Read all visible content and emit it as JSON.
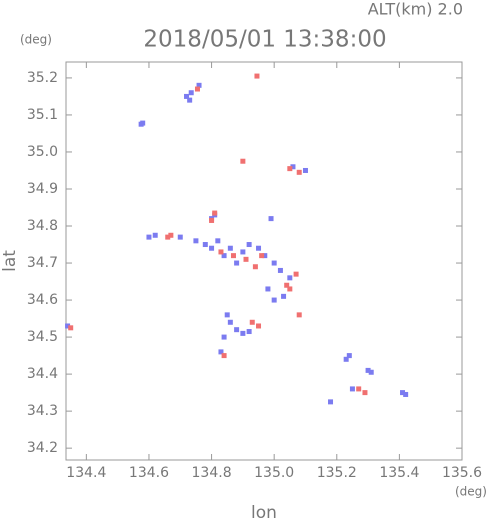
{
  "chart_data": {
    "type": "scatter",
    "title": "2018/05/01 13:38:00",
    "subtitle": "ALT(km) 2.0",
    "y_unit": "(deg)",
    "x_unit": "(deg)",
    "xlabel": "lon",
    "ylabel": "lat",
    "xlim": [
      134.335,
      135.6
    ],
    "ylim": [
      34.168,
      35.243
    ],
    "xticks": [
      134.4,
      134.6,
      134.8,
      {
        "value": 135,
        "label": "135.0"
      },
      135.2,
      135.4,
      135.6
    ],
    "yticks": [
      34.2,
      34.3,
      34.4,
      34.5,
      34.6,
      34.7,
      34.8,
      34.9,
      {
        "value": 35,
        "label": "35.0"
      },
      35.1,
      35.2
    ],
    "series": [
      {
        "color": "#7b7bf0",
        "x": [
          134.575,
          134.58,
          134.72,
          134.73,
          134.735,
          134.76,
          134.8,
          134.81,
          134.6,
          134.62,
          134.7,
          134.75,
          134.78,
          134.8,
          134.82,
          134.84,
          134.86,
          134.88,
          134.9,
          134.92,
          134.95,
          134.97,
          135.0,
          135.02,
          135.05,
          134.98,
          135.0,
          135.03,
          134.99,
          135.1,
          135.06,
          134.88,
          134.9,
          134.92,
          134.86,
          134.84,
          134.83,
          134.85,
          135.23,
          135.24,
          135.3,
          135.31,
          135.25,
          135.18,
          135.41,
          135.42,
          134.34
        ],
        "y": [
          35.075,
          35.078,
          35.15,
          35.14,
          35.16,
          35.18,
          34.82,
          34.83,
          34.77,
          34.775,
          34.77,
          34.76,
          34.75,
          34.74,
          34.76,
          34.72,
          34.74,
          34.7,
          34.73,
          34.75,
          34.74,
          34.72,
          34.7,
          34.68,
          34.66,
          34.63,
          34.6,
          34.61,
          34.82,
          34.95,
          34.96,
          34.52,
          34.51,
          34.515,
          34.54,
          34.5,
          34.46,
          34.56,
          34.44,
          34.45,
          34.41,
          34.405,
          34.36,
          34.325,
          34.35,
          34.345,
          34.53
        ]
      },
      {
        "color": "#f07070",
        "x": [
          134.945,
          134.755,
          134.9,
          135.05,
          135.08,
          134.81,
          134.8,
          134.67,
          134.66,
          134.83,
          134.87,
          134.91,
          134.94,
          134.96,
          135.04,
          135.05,
          135.07,
          135.08,
          134.95,
          134.93,
          134.84,
          135.27,
          135.29,
          134.35
        ],
        "y": [
          35.205,
          35.17,
          34.975,
          34.955,
          34.945,
          34.835,
          34.815,
          34.775,
          34.77,
          34.73,
          34.72,
          34.71,
          34.69,
          34.72,
          34.64,
          34.63,
          34.67,
          34.56,
          34.53,
          34.54,
          34.45,
          34.36,
          34.35,
          34.525
        ]
      }
    ]
  }
}
